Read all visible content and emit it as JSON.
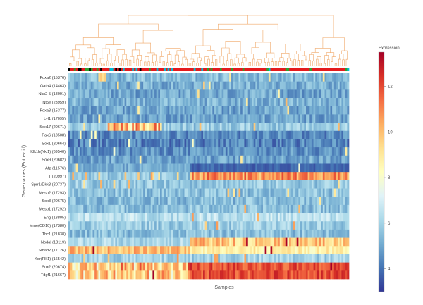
{
  "chart_data": {
    "type": "heatmap",
    "title": "",
    "xlabel": "Samples",
    "ylabel": "Gene names (Entrez id)",
    "genes": [
      "Foxa2 (15376)",
      "Gata4 (14463)",
      "Nkx2-5 (18091)",
      "Nt5e (23959)",
      "Foxa3 (15377)",
      "Lyl1 (17095)",
      "Sox17 (20671)",
      "Pax6 (18508)",
      "Sox1 (20664)",
      "Klk1b(Nkl1) (69540)",
      "Sox9 (20682)",
      "Afp (11576)",
      "T (20997)",
      "Sprr1/Dkk3 (20737)",
      "Mesp2 (17293)",
      "Sox3 (20675)",
      "Mesp1 (17292)",
      "Eng (13805)",
      "Mme(CD10) (17380)",
      "Thc1 (21838)",
      "Nodal (18119)",
      "Smad2 (17126)",
      "Kdr(Flk1) (16542)",
      "Sox2 (20674)",
      "Tdgf1 (21667)"
    ],
    "colorbar": {
      "title": "Expression",
      "ticks": [
        4,
        6,
        8,
        10,
        12
      ],
      "range": [
        3,
        13.5
      ],
      "colorscale": [
        "#313695",
        "#4575b4",
        "#74add1",
        "#abd9e9",
        "#e0f3f8",
        "#ffffbf",
        "#fee090",
        "#fdae61",
        "#f46d43",
        "#d73027",
        "#a50026"
      ]
    },
    "n_samples": 150,
    "row_levels": [
      5.5,
      5.2,
      5.0,
      5.3,
      5.0,
      5.0,
      5.8,
      4.5,
      4.3,
      4.6,
      5.0,
      4.5,
      5.4,
      5.8,
      5.6,
      5.5,
      5.6,
      6.5,
      5.9,
      5.6,
      7.8,
      8.2,
      6.0,
      10.8,
      11.2
    ],
    "annotation_colors": [
      "#e41a1c",
      "#00bcd4",
      "#000000",
      "#2ca02c"
    ]
  }
}
